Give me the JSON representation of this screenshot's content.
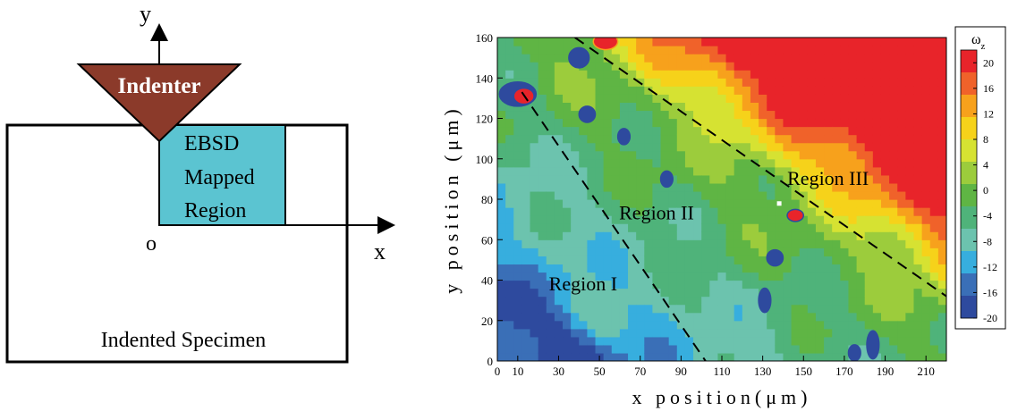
{
  "schematic": {
    "y_axis_label": "y",
    "x_axis_label": "x",
    "origin_label": "o",
    "indenter_label": "Indenter",
    "mapped_region_lines": [
      "EBSD",
      "Mapped",
      "Region"
    ],
    "specimen_label": "Indented Specimen",
    "colors": {
      "indenter": "#8b3a2a",
      "mapped_region": "#5bc4d1"
    }
  },
  "chart_data": {
    "type": "heatmap",
    "xlabel": "x position(μm)",
    "ylabel": "y position (μm)",
    "xlim": [
      0,
      220
    ],
    "ylim": [
      0,
      160
    ],
    "x_ticks": [
      0,
      10,
      30,
      50,
      70,
      90,
      110,
      130,
      150,
      170,
      190,
      210
    ],
    "y_ticks": [
      0,
      20,
      40,
      60,
      80,
      100,
      120,
      140,
      160
    ],
    "colorbar": {
      "title": "ωz",
      "range": [
        -20,
        22
      ],
      "ticks": [
        20,
        16,
        12,
        8,
        4,
        0,
        -4,
        -8,
        -12,
        -16,
        -20
      ],
      "colors": [
        "#e8242a",
        "#f0622a",
        "#f7a11c",
        "#f6d21a",
        "#d6e232",
        "#9ccc3c",
        "#5fb544",
        "#4fb37a",
        "#6cc3ae",
        "#37aede",
        "#3a6fb7",
        "#2e4a9e"
      ]
    },
    "regions": [
      {
        "label": "Region I",
        "x": 42,
        "y": 35
      },
      {
        "label": "Region II",
        "x": 78,
        "y": 70
      },
      {
        "label": "Region III",
        "x": 162,
        "y": 87
      }
    ],
    "boundaries": [
      {
        "from": [
          12,
          133
        ],
        "to": [
          102,
          0
        ]
      },
      {
        "from": [
          38,
          160
        ],
        "to": [
          220,
          32
        ]
      }
    ]
  }
}
